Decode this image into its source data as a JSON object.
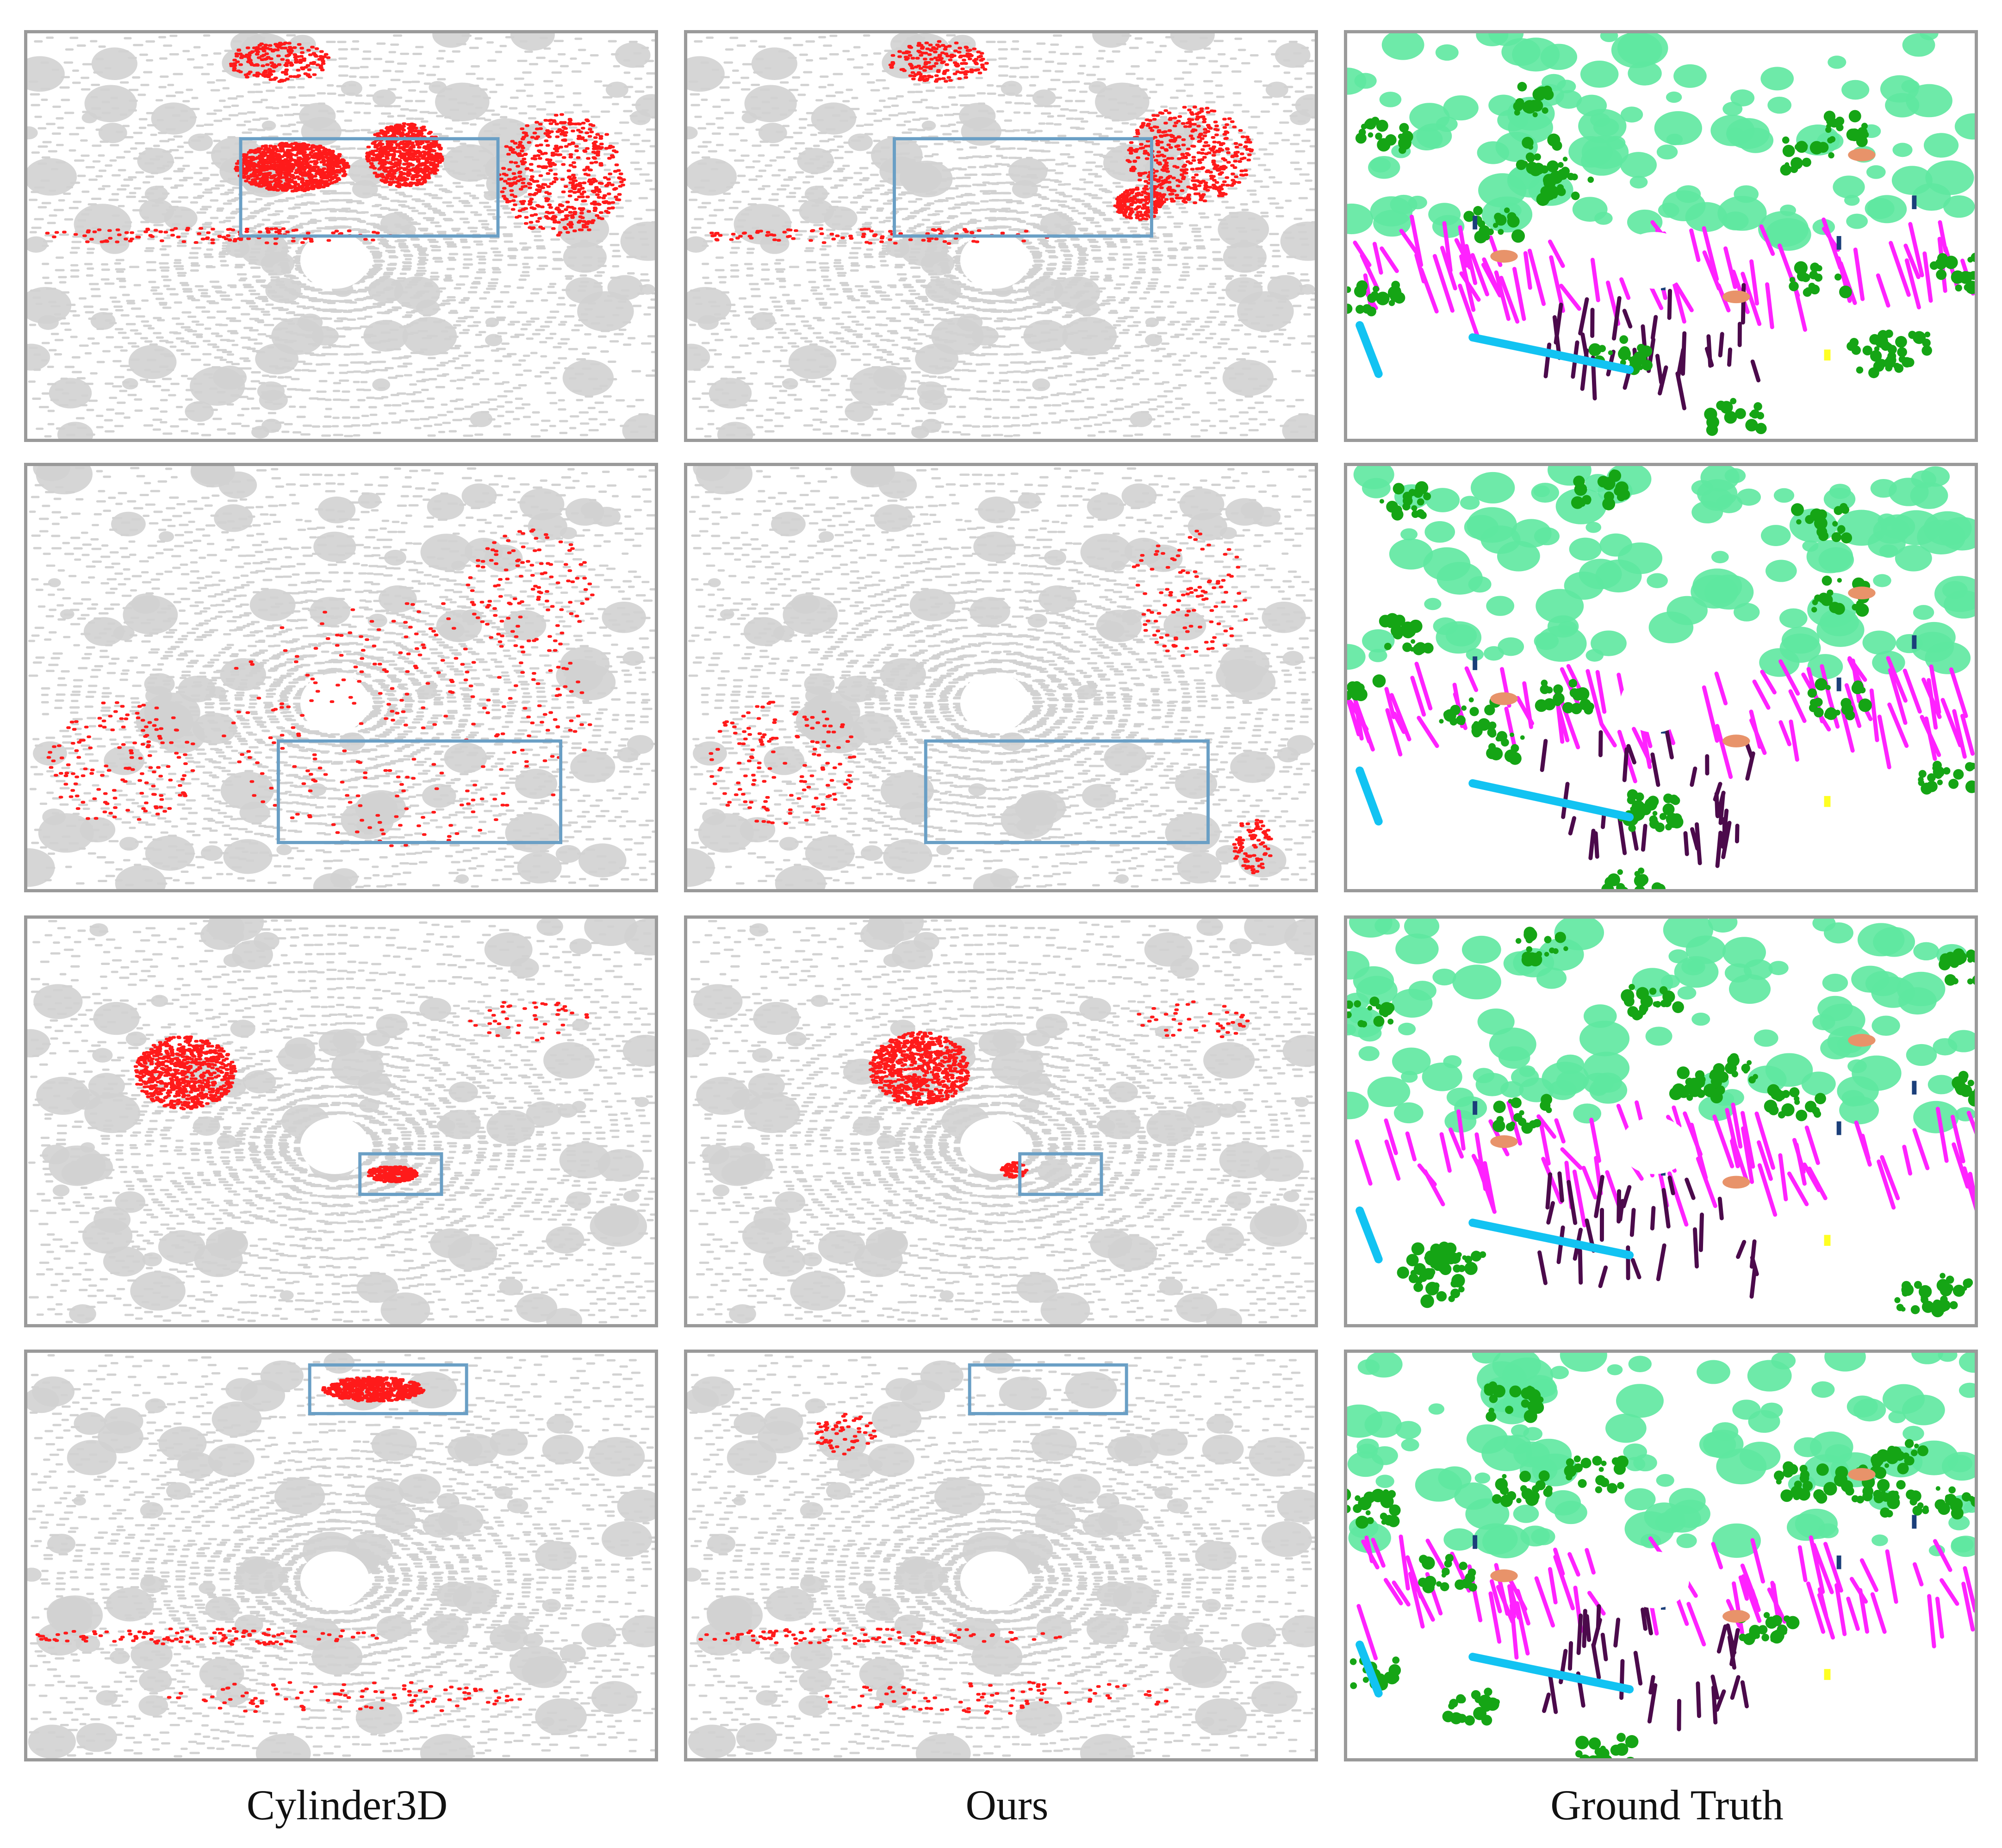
{
  "columns": [
    {
      "label": "Cylinder3D",
      "kind": "prediction"
    },
    {
      "label": "Ours",
      "kind": "prediction"
    },
    {
      "label": "Ground Truth",
      "kind": "ground_truth"
    }
  ],
  "rows": 4,
  "colors": {
    "unlabeled_points": "#d2d2d2",
    "error_points": "#ff1a1a",
    "highlight_box": "#6a9fc5",
    "panel_border": "#9a9a9a",
    "gt_terrain": "#5ee8a0",
    "gt_vegetation": "#15a515",
    "gt_road": "#ff22ff",
    "gt_sidewalk": "#4b0a4b",
    "gt_building": "#12c3f2",
    "gt_car": "#e8936a",
    "gt_pole": "#1b3f7a",
    "gt_traffic_sign": "#ffff22",
    "gt_other": "#ee1c1c"
  }
}
